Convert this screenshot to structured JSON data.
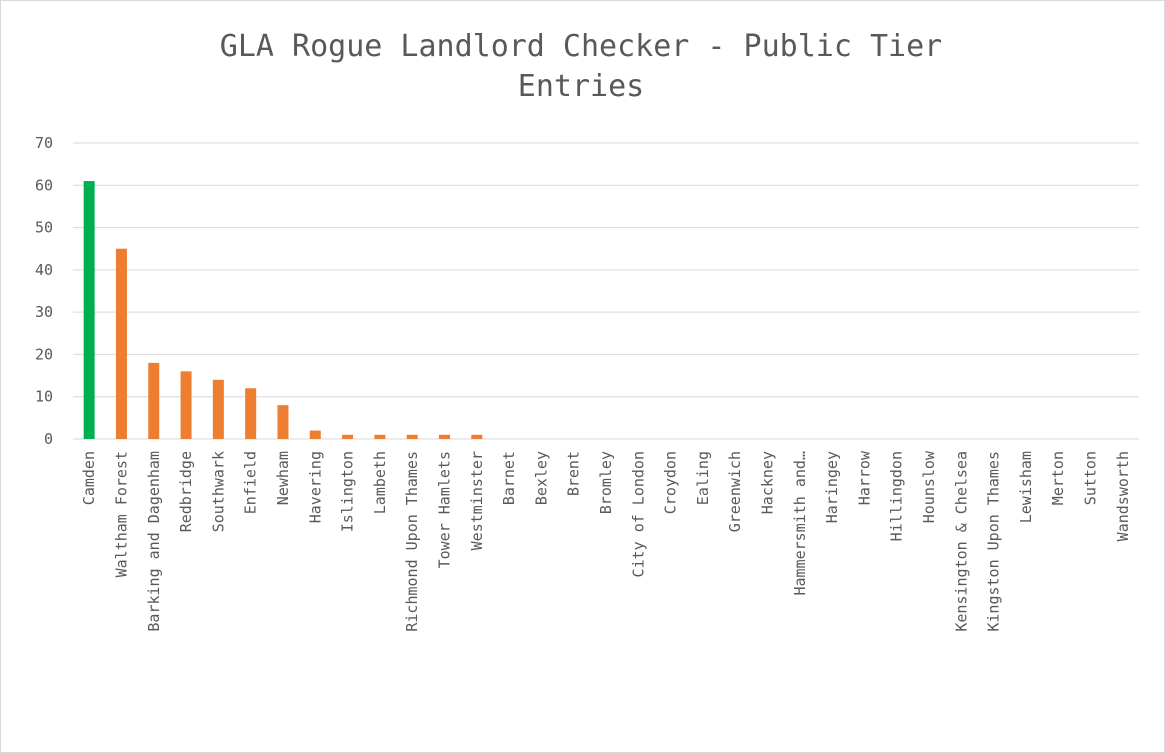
{
  "chart_data": {
    "type": "bar",
    "title": "GLA Rogue Landlord Checker - Public Tier Entries",
    "xlabel": "",
    "ylabel": "",
    "ylim": [
      0,
      70
    ],
    "yticks": [
      0,
      10,
      20,
      30,
      40,
      50,
      60,
      70
    ],
    "grid": true,
    "legend": "none",
    "colors": {
      "highlight": "#00b050",
      "default": "#ed7d31",
      "grid": "#d9d9d9",
      "text": "#595959"
    },
    "categories": [
      "Camden",
      "Waltham Forest",
      "Barking and Dagenham",
      "Redbridge",
      "Southwark",
      "Enfield",
      "Newham",
      "Havering",
      "Islington",
      "Lambeth",
      "Richmond Upon Thames",
      "Tower Hamlets",
      "Westminster",
      "Barnet",
      "Bexley",
      "Brent",
      "Bromley",
      "City of London",
      "Croydon",
      "Ealing",
      "Greenwich",
      "Hackney",
      "Hammersmith and…",
      "Haringey",
      "Harrow",
      "Hillingdon",
      "Hounslow",
      "Kensington & Chelsea",
      "Kingston Upon Thames",
      "Lewisham",
      "Merton",
      "Sutton",
      "Wandsworth"
    ],
    "values": [
      61,
      45,
      18,
      16,
      14,
      12,
      8,
      2,
      1,
      1,
      1,
      1,
      1,
      0,
      0,
      0,
      0,
      0,
      0,
      0,
      0,
      0,
      0,
      0,
      0,
      0,
      0,
      0,
      0,
      0,
      0,
      0,
      0
    ],
    "highlight_index": 0
  }
}
